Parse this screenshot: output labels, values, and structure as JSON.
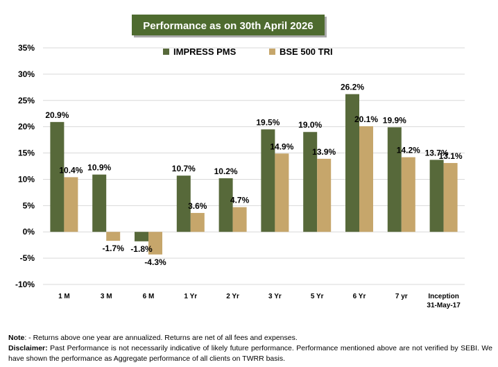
{
  "chart_data": {
    "type": "bar",
    "title": "Performance as on 30th April 2026",
    "colors": {
      "title_bg": "#4e6b2f",
      "title_text": "#ffffff",
      "grid": "#d9d9d9"
    },
    "series": [
      {
        "name": "IMPRESS PMS",
        "color": "#57693a",
        "values": [
          20.9,
          10.9,
          -1.8,
          10.7,
          10.2,
          19.5,
          19.0,
          26.2,
          19.9,
          13.7
        ],
        "labels": [
          "20.9%",
          "10.9%",
          "-1.8%",
          "10.7%",
          "10.2%",
          "19.5%",
          "19.0%",
          "26.2%",
          "19.9%",
          "13.7%"
        ]
      },
      {
        "name": "BSE 500 TRI",
        "color": "#c6a66b",
        "values": [
          10.4,
          -1.7,
          -4.3,
          3.6,
          4.7,
          14.9,
          13.9,
          20.1,
          14.2,
          13.1
        ],
        "labels": [
          "10.4%",
          "-1.7%",
          "-4.3%",
          "3.6%",
          "4.7%",
          "14.9%",
          "13.9%",
          "20.1%",
          "14.2%",
          "13.1%"
        ]
      }
    ],
    "categories": [
      [
        "1 M"
      ],
      [
        "3 M"
      ],
      [
        "6 M"
      ],
      [
        "1 Yr"
      ],
      [
        "2 Yr"
      ],
      [
        "3 Yr"
      ],
      [
        "5 Yr"
      ],
      [
        "6 Yr"
      ],
      [
        "7 yr"
      ],
      [
        "Inception",
        "31-May-17"
      ]
    ],
    "ylim": [
      -10,
      35
    ],
    "yticks": [
      -10,
      -5,
      0,
      5,
      10,
      15,
      20,
      25,
      30,
      35
    ],
    "ytick_labels": [
      "-10%",
      "-5%",
      "0%",
      "5%",
      "10%",
      "15%",
      "20%",
      "25%",
      "30%",
      "35%"
    ],
    "grid": true,
    "legend_position": "top"
  },
  "notes": {
    "note_label": "Note",
    "note_text": ": - Returns above one year are annualized. Returns are net of all fees and expenses.",
    "disclaimer_label": "Disclaimer:",
    "disclaimer_text": " Past Performance is not necessarily indicative of likely future performance. Performance mentioned above are not verified by SEBI. We have shown the performance as Aggregate performance of all clients on TWRR basis."
  }
}
